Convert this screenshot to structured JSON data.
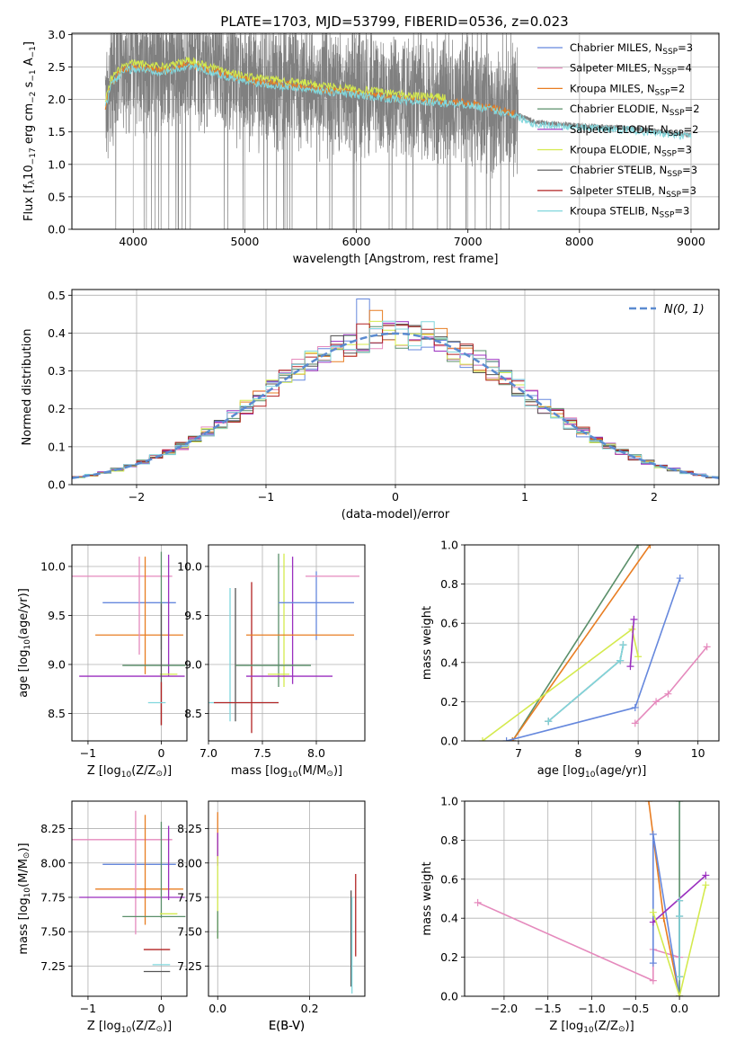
{
  "figure": {
    "title": "PLATE=1703, MJD=53799, FIBERID=0536, z=0.023",
    "colors": {
      "Chabrier MILES": "#6688dd",
      "Salpeter MILES": "#e58abd",
      "Kroupa MILES": "#e87d22",
      "Chabrier ELODIE": "#5a8f6a",
      "Salpeter ELODIE": "#9a2fbf",
      "Kroupa ELODIE": "#d4ea4e",
      "Chabrier STELIB": "#555555",
      "Salpeter STELIB": "#b22222",
      "Kroupa STELIB": "#80d7dd",
      "data": "#808080",
      "gauss": "#5b8bd0"
    }
  },
  "chart_data": [
    {
      "type": "line",
      "panel": "spectrum",
      "xlabel": "wavelength [Angstrom, rest frame]",
      "ylabel": "Flux [f",
      "ylabel_parts": [
        "Flux [f",
        "λ",
        "10",
        "−17",
        " erg cm",
        "−2",
        " s",
        "−1",
        " A",
        "−1",
        "]"
      ],
      "xlim": [
        3450,
        9250
      ],
      "ylim": [
        0,
        3.02
      ],
      "xticks": [
        "4000",
        "5000",
        "6000",
        "7000",
        "8000",
        "9000"
      ],
      "yticks": [
        "0.0",
        "0.5",
        "1.0",
        "1.5",
        "2.0",
        "2.5",
        "3.0"
      ],
      "xtick_values": [
        4000,
        5000,
        6000,
        7000,
        8000,
        9000
      ],
      "ytick_values": [
        0,
        0.5,
        1.0,
        1.5,
        2.0,
        2.5,
        3.0
      ],
      "legend": {
        "placement": "upper right",
        "entries": [
          {
            "name": "Chabrier MILES",
            "nssp": "3"
          },
          {
            "name": "Salpeter MILES",
            "nssp": "4"
          },
          {
            "name": "Kroupa MILES",
            "nssp": "2"
          },
          {
            "name": "Chabrier ELODIE",
            "nssp": "2"
          },
          {
            "name": "Salpeter ELODIE",
            "nssp": "2"
          },
          {
            "name": "Kroupa ELODIE",
            "nssp": "3"
          },
          {
            "name": "Chabrier STELIB",
            "nssp": "3"
          },
          {
            "name": "Salpeter STELIB",
            "nssp": "3"
          },
          {
            "name": "Kroupa STELIB",
            "nssp": "3"
          }
        ],
        "nssp_label": "N",
        "nssp_sub": "SSP"
      },
      "continuum": [
        [
          3750,
          1.9
        ],
        [
          3800,
          2.25
        ],
        [
          3900,
          2.45
        ],
        [
          4000,
          2.5
        ],
        [
          4300,
          2.45
        ],
        [
          4500,
          2.55
        ],
        [
          4800,
          2.4
        ],
        [
          5000,
          2.3
        ],
        [
          5500,
          2.2
        ],
        [
          6000,
          2.1
        ],
        [
          6500,
          2.0
        ],
        [
          7000,
          1.95
        ],
        [
          7400,
          1.8
        ],
        [
          7600,
          1.65
        ],
        [
          8000,
          1.6
        ],
        [
          8500,
          1.55
        ],
        [
          9000,
          1.45
        ]
      ],
      "model_ranges": {
        "MILES": [
          3750,
          7420
        ],
        "ELODIE": [
          3750,
          6800
        ],
        "STELIB": [
          3750,
          9000
        ]
      }
    },
    {
      "type": "histogram",
      "panel": "residuals",
      "xlabel": "(data-model)/error",
      "ylabel": "Normed distribution",
      "xlim": [
        -2.5,
        2.5
      ],
      "ylim": [
        0,
        0.515
      ],
      "xticks": [
        "−2",
        "−1",
        "0",
        "1",
        "2"
      ],
      "yticks": [
        "0.0",
        "0.1",
        "0.2",
        "0.3",
        "0.4",
        "0.5"
      ],
      "xtick_values": [
        -2,
        -1,
        0,
        1,
        2
      ],
      "ytick_values": [
        0,
        0.1,
        0.2,
        0.3,
        0.4,
        0.5
      ],
      "gaussian_label": "N(0, 1)",
      "bins": {
        "start": -2.5,
        "width": 0.1,
        "count": 50
      },
      "peak_bins": [
        {
          "center": -0.25,
          "value": 0.49
        },
        {
          "center": -0.15,
          "value": 0.46
        },
        {
          "center": 0.05,
          "value": 0.43
        },
        {
          "center": 0.15,
          "value": 0.42
        },
        {
          "center": 0.25,
          "value": 0.43
        }
      ]
    },
    {
      "type": "scatter",
      "panel": "age-vs-Z",
      "xlabel": "Z [log",
      "xlabel_parts": [
        "Z [log",
        "10",
        "(Z/Z",
        "⊙",
        ")]"
      ],
      "ylabel_parts": [
        "age  [log",
        "10",
        "(age/yr)]"
      ],
      "xlim": [
        -1.22,
        0.35
      ],
      "ylim": [
        8.22,
        10.22
      ],
      "xticks": [
        "−1",
        "0"
      ],
      "yticks": [
        "8.5",
        "9.0",
        "9.5",
        "10.0"
      ],
      "xtick_values": [
        -1,
        0
      ],
      "ytick_values": [
        8.5,
        9.0,
        9.5,
        10.0
      ],
      "points": [
        {
          "model": "Salpeter MILES",
          "x": -0.7,
          "xerr": 0.85,
          "y": 9.9,
          "yerr": 0.0
        },
        {
          "model": "Chabrier MILES",
          "x": -0.3,
          "xerr": 0.5,
          "y": 9.63,
          "yerr": 0.0
        },
        {
          "model": "Kroupa MILES",
          "x": -0.3,
          "xerr": 0.6,
          "y": 9.3,
          "yerr": 0.0
        },
        {
          "model": "Salpeter MILES",
          "x": -0.3,
          "xerr": 0.0,
          "y": 9.6,
          "yerr": 0.5
        },
        {
          "model": "Kroupa MILES",
          "x": -0.22,
          "xerr": 0.0,
          "y": 9.5,
          "yerr": 0.6
        },
        {
          "model": "Chabrier ELODIE",
          "x": 0.0,
          "xerr": 0.0,
          "y": 9.65,
          "yerr": 0.5
        },
        {
          "model": "Salpeter ELODIE",
          "x": 0.1,
          "xerr": 0.0,
          "y": 9.5,
          "yerr": 0.62
        },
        {
          "model": "Chabrier ELODIE",
          "x": -0.1,
          "xerr": 0.43,
          "y": 8.99,
          "yerr": 0.0
        },
        {
          "model": "Salpeter ELODIE",
          "x": -0.4,
          "xerr": 0.72,
          "y": 8.88,
          "yerr": 0.0
        },
        {
          "model": "Kroupa ELODIE",
          "x": 0.1,
          "xerr": 0.12,
          "y": 8.9,
          "yerr": 0.0
        },
        {
          "model": "Chabrier STELIB",
          "x": 0.0,
          "xerr": 0.0,
          "y": 9.0,
          "yerr": 0.62
        },
        {
          "model": "Salpeter STELIB",
          "x": 0.0,
          "xerr": 0.0,
          "y": 8.6,
          "yerr": 0.22
        },
        {
          "model": "Kroupa STELIB",
          "x": -0.06,
          "xerr": 0.12,
          "y": 8.61,
          "yerr": 0.0
        }
      ]
    },
    {
      "type": "scatter",
      "panel": "age-vs-mass",
      "xlabel_parts": [
        "mass [log",
        "10",
        "(M/M",
        "⊙",
        ")]"
      ],
      "xlim": [
        7.0,
        8.45
      ],
      "ylim": [
        8.22,
        10.22
      ],
      "xticks": [
        "7.0",
        "7.5",
        "8.0"
      ],
      "yticks": [
        "8.5",
        "9.0",
        "9.5",
        "10.0"
      ],
      "xtick_values": [
        7.0,
        7.5,
        8.0
      ],
      "ytick_values": [
        8.5,
        9.0,
        9.5,
        10.0
      ],
      "points": [
        {
          "model": "Kroupa STELIB",
          "x": 7.2,
          "xerr": 0.0,
          "y": 9.1,
          "yerr": 0.68
        },
        {
          "model": "Chabrier STELIB",
          "x": 7.25,
          "xerr": 0.0,
          "y": 9.1,
          "yerr": 0.68
        },
        {
          "model": "Salpeter STELIB",
          "x": 7.4,
          "xerr": 0.0,
          "y": 9.07,
          "yerr": 0.77
        },
        {
          "model": "Kroupa STELIB",
          "x": 7.3,
          "xerr": 0.35,
          "y": 8.61,
          "yerr": 0.0
        },
        {
          "model": "Salpeter STELIB",
          "x": 7.35,
          "xerr": 0.3,
          "y": 8.61,
          "yerr": 0.0
        },
        {
          "model": "Chabrier ELODIE",
          "x": 7.65,
          "xerr": 0.0,
          "y": 9.45,
          "yerr": 0.68
        },
        {
          "model": "Kroupa ELODIE",
          "x": 7.7,
          "xerr": 0.0,
          "y": 9.45,
          "yerr": 0.68
        },
        {
          "model": "Salpeter ELODIE",
          "x": 7.78,
          "xerr": 0.0,
          "y": 9.45,
          "yerr": 0.65
        },
        {
          "model": "Chabrier MILES",
          "x": 8.0,
          "xerr": 0.0,
          "y": 9.6,
          "yerr": 0.35
        },
        {
          "model": "Chabrier MILES",
          "x": 8.0,
          "xerr": 0.35,
          "y": 9.63,
          "yerr": 0.0
        },
        {
          "model": "Salpeter MILES",
          "x": 8.15,
          "xerr": 0.25,
          "y": 9.9,
          "yerr": 0.0
        },
        {
          "model": "Kroupa MILES",
          "x": 7.85,
          "xerr": 0.5,
          "y": 9.3,
          "yerr": 0.0
        },
        {
          "model": "Chabrier ELODIE",
          "x": 7.6,
          "xerr": 0.35,
          "y": 8.99,
          "yerr": 0.0
        },
        {
          "model": "Salpeter ELODIE",
          "x": 7.75,
          "xerr": 0.4,
          "y": 8.88,
          "yerr": 0.0
        },
        {
          "model": "Kroupa ELODIE",
          "x": 7.65,
          "xerr": 0.1,
          "y": 8.9,
          "yerr": 0.0
        }
      ]
    },
    {
      "type": "line",
      "panel": "massweight-vs-age",
      "xlabel_parts": [
        "age  [log",
        "10",
        "(age/yr)]"
      ],
      "ylabel": "mass weight",
      "xlim": [
        6.1,
        10.35
      ],
      "ylim": [
        0,
        1.0
      ],
      "xticks": [
        "7",
        "8",
        "9",
        "10"
      ],
      "yticks": [
        "0.0",
        "0.2",
        "0.4",
        "0.6",
        "0.8",
        "1.0"
      ],
      "xtick_values": [
        7,
        8,
        9,
        10
      ],
      "ytick_values": [
        0,
        0.2,
        0.4,
        0.6,
        0.8,
        1.0
      ],
      "series": [
        {
          "model": "Chabrier ELODIE",
          "x": [
            6.9,
            9.0
          ],
          "y": [
            0.0,
            1.0
          ]
        },
        {
          "model": "Kroupa MILES",
          "x": [
            6.9,
            9.2
          ],
          "y": [
            0.0,
            1.0
          ]
        },
        {
          "model": "Kroupa ELODIE",
          "x": [
            6.4,
            8.9,
            9.0
          ],
          "y": [
            0.0,
            0.57,
            0.43
          ]
        },
        {
          "model": "Chabrier MILES",
          "x": [
            6.8,
            8.95,
            9.7
          ],
          "y": [
            0.0,
            0.17,
            0.83
          ]
        },
        {
          "model": "Salpeter ELODIE",
          "x": [
            8.87,
            8.93
          ],
          "y": [
            0.38,
            0.62
          ]
        },
        {
          "model": "Chabrier STELIB",
          "x": [
            7.5,
            8.7,
            8.75
          ],
          "y": [
            0.1,
            0.41,
            0.49
          ]
        },
        {
          "model": "Kroupa STELIB",
          "x": [
            7.5,
            8.7,
            8.75
          ],
          "y": [
            0.1,
            0.41,
            0.49
          ]
        },
        {
          "model": "Salpeter MILES",
          "x": [
            8.95,
            9.3,
            9.5,
            10.15
          ],
          "y": [
            0.09,
            0.2,
            0.24,
            0.48
          ]
        }
      ]
    },
    {
      "type": "scatter",
      "panel": "mass-vs-Z",
      "xlabel_parts": [
        "Z [log",
        "10",
        "(Z/Z",
        "⊙",
        ")]"
      ],
      "ylabel_parts": [
        "mass [log",
        "10",
        "(M/M",
        "⊙",
        ")]"
      ],
      "xlim": [
        -1.22,
        0.35
      ],
      "ylim": [
        7.03,
        8.45
      ],
      "xticks": [
        "−1",
        "0"
      ],
      "yticks": [
        "7.25",
        "7.50",
        "7.75",
        "8.00",
        "8.25"
      ],
      "xtick_values": [
        -1,
        0
      ],
      "ytick_values": [
        7.25,
        7.5,
        7.75,
        8.0,
        8.25
      ],
      "points": [
        {
          "model": "Salpeter MILES",
          "x": -0.7,
          "xerr": 0.85,
          "y": 8.17,
          "yerr": 0.0
        },
        {
          "model": "Chabrier MILES",
          "x": -0.3,
          "xerr": 0.5,
          "y": 7.99,
          "yerr": 0.0
        },
        {
          "model": "Kroupa MILES",
          "x": -0.3,
          "xerr": 0.6,
          "y": 7.81,
          "yerr": 0.0
        },
        {
          "model": "Salpeter MILES",
          "x": -0.35,
          "xerr": 0.0,
          "y": 7.93,
          "yerr": 0.45
        },
        {
          "model": "Kroupa MILES",
          "x": -0.22,
          "xerr": 0.0,
          "y": 7.95,
          "yerr": 0.4
        },
        {
          "model": "Salpeter ELODIE",
          "x": -0.4,
          "xerr": 0.72,
          "y": 7.75,
          "yerr": 0.0
        },
        {
          "model": "Chabrier ELODIE",
          "x": -0.1,
          "xerr": 0.43,
          "y": 7.61,
          "yerr": 0.0
        },
        {
          "model": "Chabrier ELODIE",
          "x": 0.0,
          "xerr": 0.0,
          "y": 7.95,
          "yerr": 0.35
        },
        {
          "model": "Salpeter ELODIE",
          "x": 0.1,
          "xerr": 0.0,
          "y": 8.0,
          "yerr": 0.27
        },
        {
          "model": "Kroupa ELODIE",
          "x": 0.1,
          "xerr": 0.12,
          "y": 7.63,
          "yerr": 0.0
        },
        {
          "model": "Salpeter STELIB",
          "x": -0.06,
          "xerr": 0.18,
          "y": 7.37,
          "yerr": 0.0
        },
        {
          "model": "Kroupa STELIB",
          "x": 0.0,
          "xerr": 0.12,
          "y": 7.26,
          "yerr": 0.0
        },
        {
          "model": "Chabrier STELIB",
          "x": -0.06,
          "xerr": 0.18,
          "y": 7.21,
          "yerr": 0.0
        }
      ]
    },
    {
      "type": "scatter",
      "panel": "mass-vs-EBV",
      "xlabel": "E(B-V)",
      "xlim": [
        -0.02,
        0.32
      ],
      "ylim": [
        7.03,
        8.45
      ],
      "xticks": [
        "0.0",
        "0.2"
      ],
      "yticks": [
        "7.25",
        "7.50",
        "7.75",
        "8.00",
        "8.25"
      ],
      "xtick_values": [
        0,
        0.2
      ],
      "ytick_values": [
        7.25,
        7.5,
        7.75,
        8.0,
        8.25
      ],
      "points": [
        {
          "model": "Kroupa MILES",
          "x": 0.0,
          "xerr": 0.0,
          "y": 8.2,
          "yerr": 0.17
        },
        {
          "model": "Salpeter ELODIE",
          "x": 0.0,
          "xerr": 0.0,
          "y": 8.1,
          "yerr": 0.12
        },
        {
          "model": "Kroupa ELODIE",
          "x": 0.0,
          "xerr": 0.0,
          "y": 7.75,
          "yerr": 0.3
        },
        {
          "model": "Chabrier ELODIE",
          "x": 0.0,
          "xerr": 0.0,
          "y": 7.55,
          "yerr": 0.1
        },
        {
          "model": "Chabrier STELIB",
          "x": 0.29,
          "xerr": 0.0,
          "y": 7.45,
          "yerr": 0.35
        },
        {
          "model": "Kroupa STELIB",
          "x": 0.292,
          "xerr": 0.0,
          "y": 7.4,
          "yerr": 0.35
        },
        {
          "model": "Salpeter STELIB",
          "x": 0.3,
          "xerr": 0.0,
          "y": 7.62,
          "yerr": 0.3
        }
      ]
    },
    {
      "type": "line",
      "panel": "massweight-vs-Z",
      "xlabel_parts": [
        "Z [log",
        "10",
        "(Z/Z",
        "⊙",
        ")]"
      ],
      "ylabel": "mass weight",
      "xlim": [
        -2.45,
        0.45
      ],
      "ylim": [
        0,
        1.0
      ],
      "xticks": [
        "−2.0",
        "−1.5",
        "−1.0",
        "−0.5",
        "0.0"
      ],
      "yticks": [
        "0.0",
        "0.2",
        "0.4",
        "0.6",
        "0.8",
        "1.0"
      ],
      "xtick_values": [
        -2.0,
        -1.5,
        -1.0,
        -0.5,
        0.0
      ],
      "ytick_values": [
        0,
        0.2,
        0.4,
        0.6,
        0.8,
        1.0
      ],
      "series": [
        {
          "model": "Salpeter MILES",
          "x": [
            -2.3,
            -0.3,
            -0.3,
            0.0
          ],
          "y": [
            0.48,
            0.08,
            0.24,
            0.2
          ]
        },
        {
          "model": "Kroupa MILES",
          "x": [
            -0.35,
            -0.18,
            0.0
          ],
          "y": [
            1.0,
            0.4,
            0.0
          ]
        },
        {
          "model": "Chabrier MILES",
          "x": [
            -0.3,
            -0.3,
            0.0
          ],
          "y": [
            0.17,
            0.83,
            0.0
          ]
        },
        {
          "model": "Chabrier ELODIE",
          "x": [
            0.0,
            0.0
          ],
          "y": [
            0.0,
            1.0
          ]
        },
        {
          "model": "Salpeter ELODIE",
          "x": [
            -0.3,
            0.3
          ],
          "y": [
            0.38,
            0.62
          ]
        },
        {
          "model": "Kroupa ELODIE",
          "x": [
            -0.3,
            0.0,
            0.3
          ],
          "y": [
            0.43,
            0.0,
            0.57
          ]
        },
        {
          "model": "Chabrier STELIB",
          "x": [
            0.0,
            0.0,
            0.0
          ],
          "y": [
            0.1,
            0.41,
            0.49
          ]
        },
        {
          "model": "Kroupa STELIB",
          "x": [
            0.0,
            0.0,
            0.0
          ],
          "y": [
            0.1,
            0.41,
            0.49
          ]
        }
      ]
    }
  ]
}
